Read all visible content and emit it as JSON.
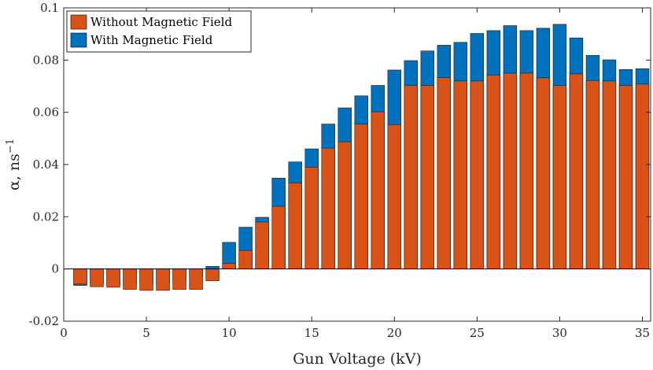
{
  "chart_data": {
    "type": "bar",
    "subtype": "overlaid",
    "xlabel": "Gun Voltage (kV)",
    "ylabel_main": "α, ns",
    "ylabel_sup": "−1",
    "xlim": [
      0,
      35.5
    ],
    "ylim": [
      -0.02,
      0.1
    ],
    "xticks": [
      0,
      5,
      10,
      15,
      20,
      25,
      30,
      35
    ],
    "xtick_labels": [
      "0",
      "5",
      "10",
      "15",
      "20",
      "25",
      "30",
      "35"
    ],
    "yticks": [
      -0.02,
      0,
      0.02,
      0.04,
      0.06,
      0.08,
      0.1
    ],
    "ytick_labels": [
      "-0.02",
      "0",
      "0.02",
      "0.04",
      "0.06",
      "0.08",
      "0.1"
    ],
    "legend_position": "top-left",
    "x": [
      1,
      2,
      3,
      4,
      5,
      6,
      7,
      8,
      9,
      10,
      11,
      12,
      13,
      14,
      15,
      16,
      17,
      18,
      19,
      20,
      21,
      22,
      23,
      24,
      25,
      26,
      27,
      28,
      29,
      30,
      31,
      32,
      33,
      34,
      35
    ],
    "series": [
      {
        "name": "With Magnetic Field",
        "color": "#0072BD",
        "values": [
          -0.0063,
          -0.0055,
          -0.006,
          -0.006,
          -0.0058,
          -0.0055,
          -0.0045,
          -0.003,
          0.001,
          0.0102,
          0.016,
          0.0198,
          0.0348,
          0.041,
          0.046,
          0.0555,
          0.0617,
          0.0663,
          0.0703,
          0.0762,
          0.0798,
          0.0835,
          0.0857,
          0.0868,
          0.0902,
          0.0913,
          0.0932,
          0.0913,
          0.0922,
          0.0937,
          0.0885,
          0.0818,
          0.0801,
          0.0764,
          0.0767
        ]
      },
      {
        "name": "Without Magnetic Field",
        "color": "#D95319",
        "values": [
          -0.0058,
          -0.0068,
          -0.007,
          -0.0078,
          -0.0082,
          -0.0082,
          -0.0078,
          -0.0078,
          -0.0045,
          0.0022,
          0.0071,
          0.018,
          0.024,
          0.033,
          0.039,
          0.0463,
          0.0487,
          0.0555,
          0.0602,
          0.0553,
          0.0703,
          0.0703,
          0.0733,
          0.072,
          0.072,
          0.0743,
          0.075,
          0.075,
          0.0732,
          0.0703,
          0.0747,
          0.0722,
          0.072,
          0.0703,
          0.0708
        ]
      }
    ],
    "legend_order": [
      "Without Magnetic Field",
      "With Magnetic Field"
    ]
  }
}
